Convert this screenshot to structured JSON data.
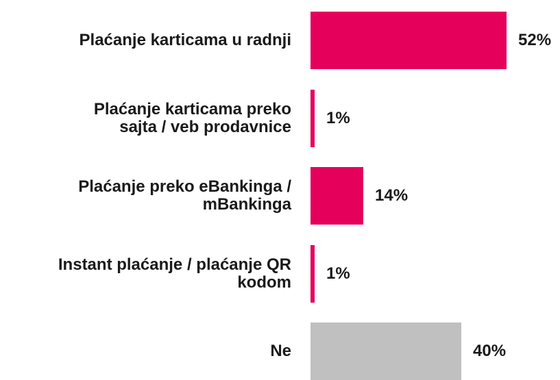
{
  "chart_data": {
    "type": "bar",
    "orientation": "horizontal",
    "categories": [
      "Plaćanje karticama u radnji",
      "Plaćanje karticama preko sajta / veb prodavnice",
      "Plaćanje preko eBankinga / mBankinga",
      "Instant plaćanje / plaćanje QR kodom",
      "Ne"
    ],
    "category_lines": [
      [
        "Plaćanje karticama u radnji"
      ],
      [
        "Plaćanje karticama preko",
        "sajta / veb prodavnice"
      ],
      [
        "Plaćanje preko eBankinga /",
        "mBankinga"
      ],
      [
        "Instant plaćanje / plaćanje QR",
        "kodom"
      ],
      [
        "Ne"
      ]
    ],
    "values": [
      52,
      1,
      14,
      1,
      40
    ],
    "value_labels": [
      "52%",
      "1%",
      "14%",
      "1%",
      "40%"
    ],
    "unit": "%",
    "bar_colors": [
      "#e5005b",
      "#e5005b",
      "#e5005b",
      "#e5005b",
      "#c0c0c0"
    ],
    "xlim": [
      0,
      52
    ],
    "grid": false,
    "legend": "none"
  }
}
